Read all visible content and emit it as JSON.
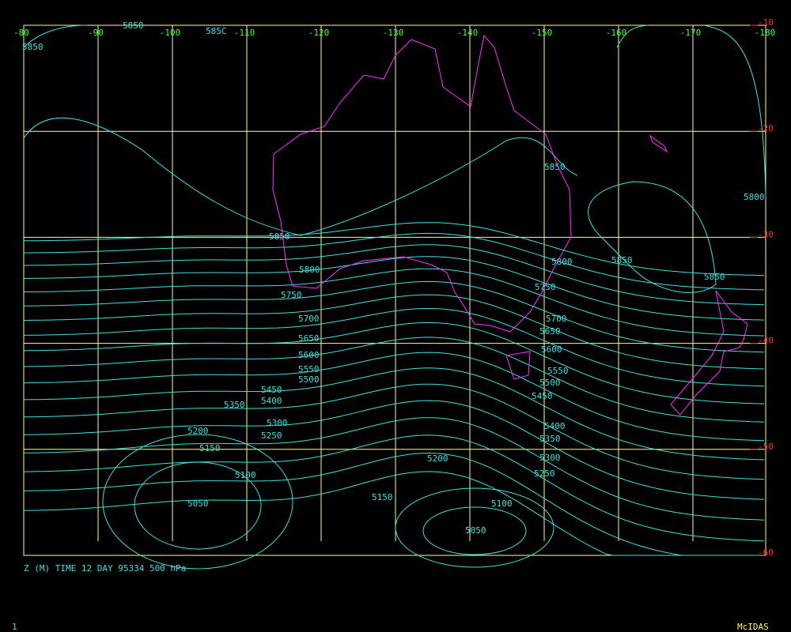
{
  "longitude_labels": [
    "-80",
    "-90",
    "-100",
    "-110",
    "-120",
    "-130",
    "-140",
    "-150",
    "-160",
    "-170",
    "-180"
  ],
  "latitude_labels": [
    "-10",
    "-20",
    "-30",
    "-40",
    "-50",
    "-60"
  ],
  "contour_labels": [
    "5850",
    "5850",
    "585C",
    "5850",
    "5800",
    "5850",
    "5800",
    "5800",
    "5850",
    "5850",
    "5750",
    "5750",
    "5700",
    "5700",
    "5650",
    "5650",
    "5600",
    "5600",
    "5550",
    "5550",
    "5500",
    "5500",
    "5450",
    "5450",
    "5400",
    "5400",
    "5350",
    "5350",
    "5300",
    "5300",
    "5250",
    "5250",
    "5200",
    "5200",
    "5150",
    "5150",
    "5100",
    "5100",
    "5050",
    "5050"
  ],
  "caption": "Z (M) TIME 12 DAY 95334 500 hPa",
  "footer": {
    "frame": "1",
    "brand": "McIDAS"
  }
}
